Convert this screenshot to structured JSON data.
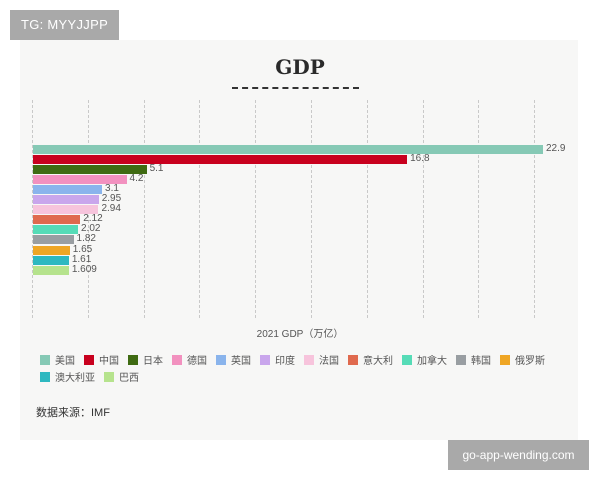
{
  "watermarks": {
    "top_left": "TG: MYYJJPP",
    "bottom_right": "go-app-wending.com"
  },
  "source_note": "数据来源：IMF",
  "chart_data": {
    "type": "bar",
    "orientation": "horizontal",
    "title": "GDP",
    "xlabel": "2021 GDP（万亿）",
    "ylabel": "",
    "xlim": [
      0,
      25
    ],
    "grid": true,
    "legend_position": "bottom",
    "categories": [
      "美国",
      "中国",
      "日本",
      "德国",
      "英国",
      "印度",
      "法国",
      "意大利",
      "加拿大",
      "韩国",
      "俄罗斯",
      "澳大利亚",
      "巴西"
    ],
    "values": [
      22.9,
      16.8,
      5.1,
      4.2,
      3.1,
      2.95,
      2.94,
      2.12,
      2.02,
      1.82,
      1.65,
      1.61,
      1.609
    ],
    "value_labels": [
      "22.9",
      "16.8",
      "5.1",
      "4.2",
      "3.1",
      "2.95",
      "2.94",
      "2.12",
      "2.02",
      "1.82",
      "1.65",
      "1.61",
      "1.609"
    ],
    "colors": [
      "#86c9b5",
      "#c8001e",
      "#3f6b12",
      "#f291bf",
      "#8ab4ec",
      "#c9a6ec",
      "#f7c4dc",
      "#e06a4e",
      "#56dcb7",
      "#999ea2",
      "#efa625",
      "#2eb8c0",
      "#b6e38d"
    ]
  }
}
